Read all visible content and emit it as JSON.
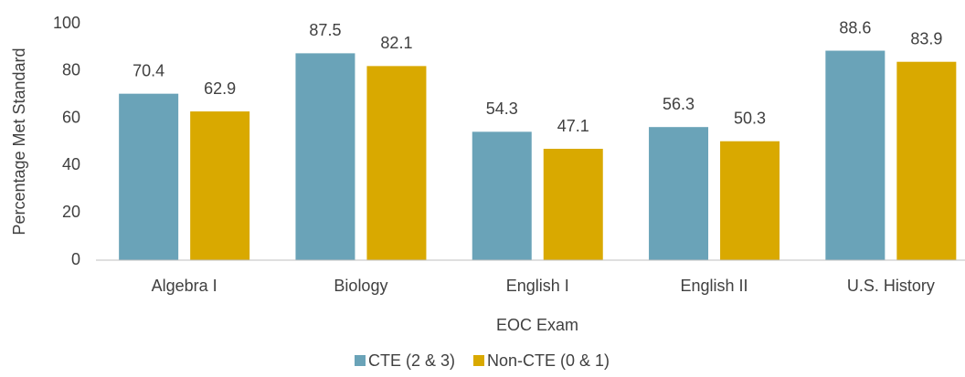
{
  "chart_data": {
    "type": "bar",
    "x_label": "EOC Exam",
    "y_label": "Percentage Met Standard",
    "categories": [
      "Algebra I",
      "Biology",
      "English I",
      "English II",
      "U.S. History"
    ],
    "series": [
      {
        "name": "CTE (2 & 3)",
        "color": "#6aa3b8",
        "values": [
          70.4,
          87.5,
          54.3,
          56.3,
          88.6
        ]
      },
      {
        "name": "Non-CTE (0 & 1)",
        "color": "#d9a900",
        "values": [
          62.9,
          82.1,
          47.1,
          50.3,
          83.9
        ]
      }
    ],
    "ylim": [
      0,
      100
    ],
    "yticks": [
      0,
      20,
      40,
      60,
      80,
      100
    ],
    "grid": false,
    "legend": "bottom"
  }
}
